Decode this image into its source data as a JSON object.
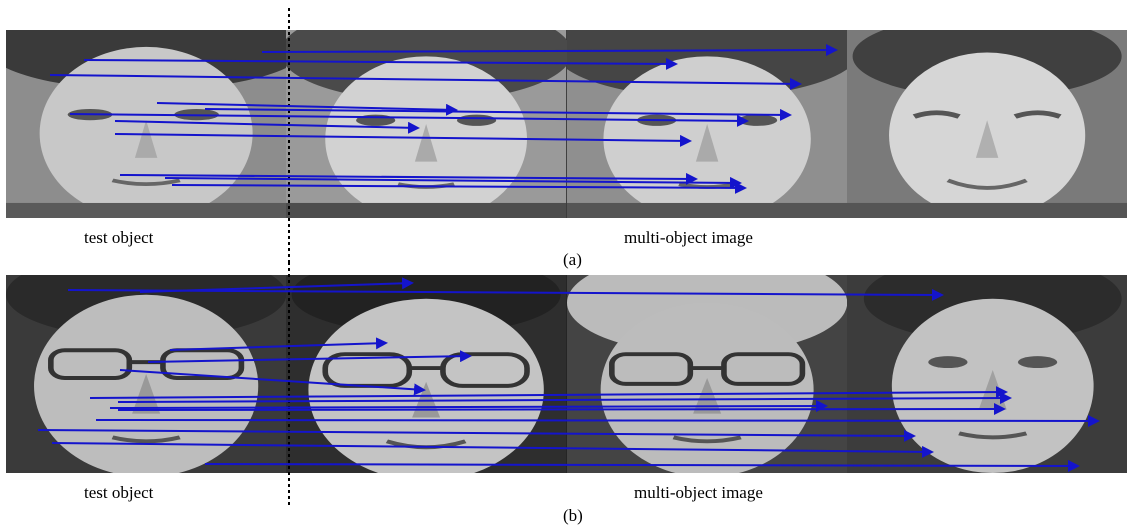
{
  "panel_a": {
    "left_caption": "test object",
    "right_caption": "multi-object image",
    "tag": "(a)"
  },
  "panel_b": {
    "left_caption": "test object",
    "right_caption": "multi-object image",
    "tag": "(b)"
  },
  "colors": {
    "match_line": "#1414cc",
    "divider": "#000000"
  }
}
